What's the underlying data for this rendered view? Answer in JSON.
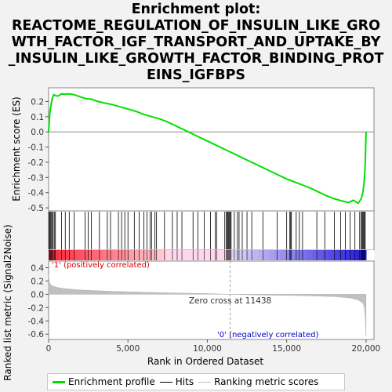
{
  "chart_data": {
    "type": "line",
    "title_lines": [
      "Enrichment plot:",
      "REACTOME_REGULATION_OF_INSULIN_LIKE_GRO",
      "WTH_FACTOR_IGF_TRANSPORT_AND_UPTAKE_BY",
      "_INSULIN_LIKE_GROWTH_FACTOR_BINDING_PROT",
      "EINS_IGFBPS"
    ],
    "es_panel": {
      "ylabel": "Enrichment score (ES)",
      "ylim": [
        -0.52,
        0.29
      ],
      "yticks": [
        0.2,
        0.1,
        0.0,
        -0.1,
        -0.2,
        -0.3,
        -0.4,
        -0.5
      ],
      "ytick_labels": [
        "0.2",
        "0.1",
        "0.0",
        "-0.1",
        "-0.2",
        "-0.3",
        "-0.4",
        "-0.5"
      ],
      "color": "#00e000",
      "x": [
        0,
        80,
        160,
        230,
        320,
        450,
        600,
        800,
        1000,
        1300,
        1600,
        2000,
        2300,
        2700,
        3100,
        3500,
        4000,
        4500,
        5000,
        5500,
        6000,
        6500,
        7000,
        7500,
        8000,
        8500,
        9000,
        9500,
        10000,
        10500,
        11000,
        11500,
        12000,
        12500,
        13000,
        13500,
        14000,
        14500,
        15000,
        15500,
        16000,
        16500,
        17000,
        17500,
        18000,
        18500,
        18900,
        19200,
        19500,
        19700,
        19800,
        19850,
        19900,
        19950,
        20000
      ],
      "y": [
        0.0,
        0.13,
        0.18,
        0.22,
        0.245,
        0.238,
        0.236,
        0.25,
        0.248,
        0.25,
        0.245,
        0.23,
        0.22,
        0.215,
        0.2,
        0.19,
        0.18,
        0.165,
        0.15,
        0.135,
        0.115,
        0.1,
        0.085,
        0.065,
        0.04,
        0.015,
        -0.01,
        -0.035,
        -0.06,
        -0.085,
        -0.11,
        -0.135,
        -0.16,
        -0.185,
        -0.21,
        -0.235,
        -0.26,
        -0.285,
        -0.31,
        -0.33,
        -0.35,
        -0.37,
        -0.395,
        -0.42,
        -0.44,
        -0.455,
        -0.465,
        -0.45,
        -0.47,
        -0.44,
        -0.4,
        -0.36,
        -0.3,
        -0.2,
        0.0
      ]
    },
    "hits": [
      20,
      60,
      110,
      160,
      220,
      290,
      360,
      430,
      820,
      1050,
      1300,
      1600,
      2300,
      2500,
      2700,
      3200,
      3700,
      3900,
      4400,
      4600,
      4800,
      5000,
      5400,
      5700,
      6000,
      6200,
      6400,
      6500,
      6700,
      6800,
      7300,
      7800,
      8100,
      8400,
      9100,
      9400,
      9800,
      10200,
      10500,
      10600,
      11100,
      11200,
      11250,
      11300,
      11350,
      11400,
      11450,
      11500,
      11700,
      11900,
      12000,
      12200,
      12500,
      12800,
      13500,
      14400,
      15000,
      15200,
      15250,
      15300,
      15600,
      15800,
      16000,
      16900,
      17400,
      18000,
      18400,
      18700,
      19000,
      19300,
      19600,
      19700,
      19750,
      19800,
      19850,
      19900,
      19950
    ],
    "ranked_panel": {
      "ylabel": "Ranked list metric (Signal2Noise)",
      "ylim": [
        -0.68,
        0.5
      ],
      "yticks": [
        0.4,
        0.2,
        0.0,
        -0.2,
        -0.4,
        -0.6
      ],
      "ytick_labels": [
        "0.4",
        "0.2",
        "0.0",
        "-0.2",
        "-0.4",
        "-0.6"
      ],
      "x": [
        0,
        50,
        150,
        300,
        600,
        1000,
        2000,
        4000,
        7000,
        10000,
        11438,
        13000,
        16000,
        18000,
        19000,
        19500,
        19800,
        19900,
        19950,
        20000
      ],
      "y": [
        0.3,
        0.18,
        0.14,
        0.12,
        0.1,
        0.085,
        0.065,
        0.045,
        0.025,
        0.01,
        0.0,
        -0.01,
        -0.02,
        -0.035,
        -0.055,
        -0.085,
        -0.13,
        -0.2,
        -0.35,
        -0.63
      ],
      "zero_cross_label": "Zero cross at 11438",
      "pos_label": "'1' (positively correlated)",
      "neg_label": "'0' (negatively correlated)"
    },
    "xlabel": "Rank in Ordered Dataset",
    "xlim": [
      0,
      20500
    ],
    "xticks": [
      0,
      5000,
      10000,
      15000,
      20000
    ],
    "xtick_labels": [
      "0",
      "5,000",
      "10,000",
      "15,000",
      "20,000"
    ],
    "zero_cross": 11438,
    "legend": {
      "items": [
        {
          "label": "Enrichment profile",
          "color": "#00e000"
        },
        {
          "label": "Hits",
          "color": "#000000"
        },
        {
          "label": "Ranking metric scores",
          "color": "#c0c0c0"
        }
      ]
    }
  }
}
